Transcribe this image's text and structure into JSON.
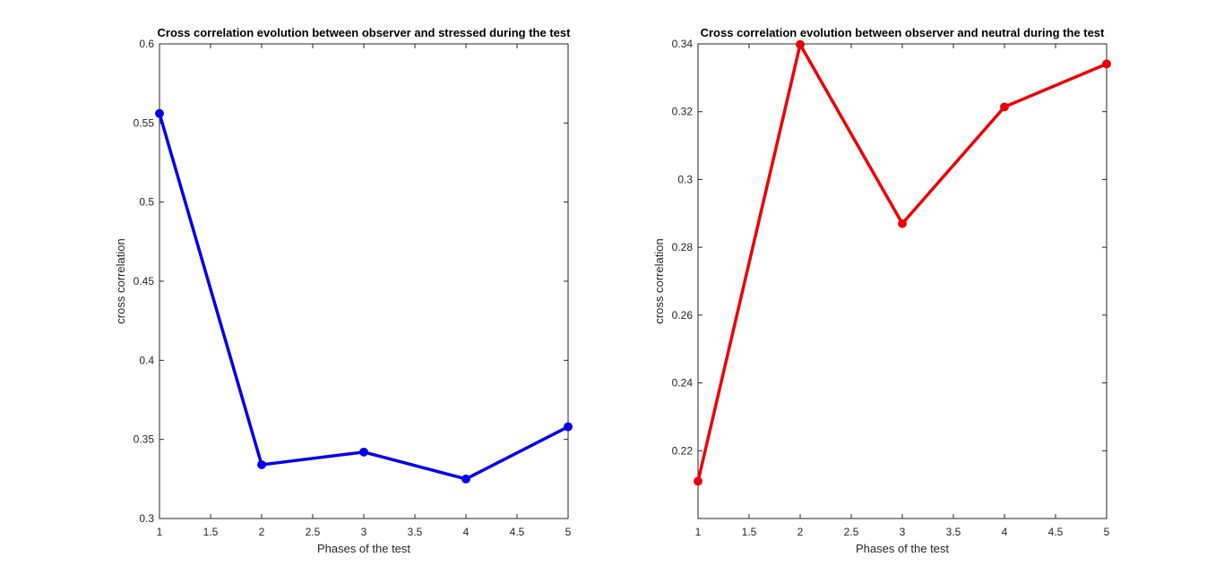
{
  "chart_data": [
    {
      "type": "line",
      "title": "Cross correlation evolution between observer and stressed during the test",
      "xlabel": "Phases of the test",
      "ylabel": "cross correlation",
      "x": [
        1,
        2,
        3,
        4,
        5
      ],
      "series": [
        {
          "values": [
            0.556,
            0.334,
            0.342,
            0.325,
            0.358
          ],
          "color": "#0000ee"
        }
      ],
      "xlim": [
        1,
        5
      ],
      "ylim": [
        0.3,
        0.6
      ],
      "xticks": [
        "1",
        "1.5",
        "2",
        "2.5",
        "3",
        "3.5",
        "4",
        "4.5",
        "5"
      ],
      "yticks": [
        "0.3",
        "0.35",
        "0.4",
        "0.45",
        "0.5",
        "0.55",
        "0.6"
      ],
      "grid": false,
      "marker": "circle"
    },
    {
      "type": "line",
      "title": "Cross correlation evolution between observer and neutral during the test",
      "xlabel": "Phases of the test",
      "ylabel": "cross correlation",
      "x": [
        1,
        2,
        3,
        4,
        5
      ],
      "series": [
        {
          "values": [
            0.211,
            0.3398,
            0.287,
            0.3214,
            0.3341
          ],
          "color": "#ee0000"
        }
      ],
      "xlim": [
        1,
        5
      ],
      "ylim": [
        0.2,
        0.34
      ],
      "xticks": [
        "1",
        "1.5",
        "2",
        "2.5",
        "3",
        "3.5",
        "4",
        "4.5",
        "5"
      ],
      "yticks": [
        "0.22",
        "0.24",
        "0.26",
        "0.28",
        "0.3",
        "0.32",
        "0.34"
      ],
      "grid": false,
      "marker": "circle"
    }
  ]
}
